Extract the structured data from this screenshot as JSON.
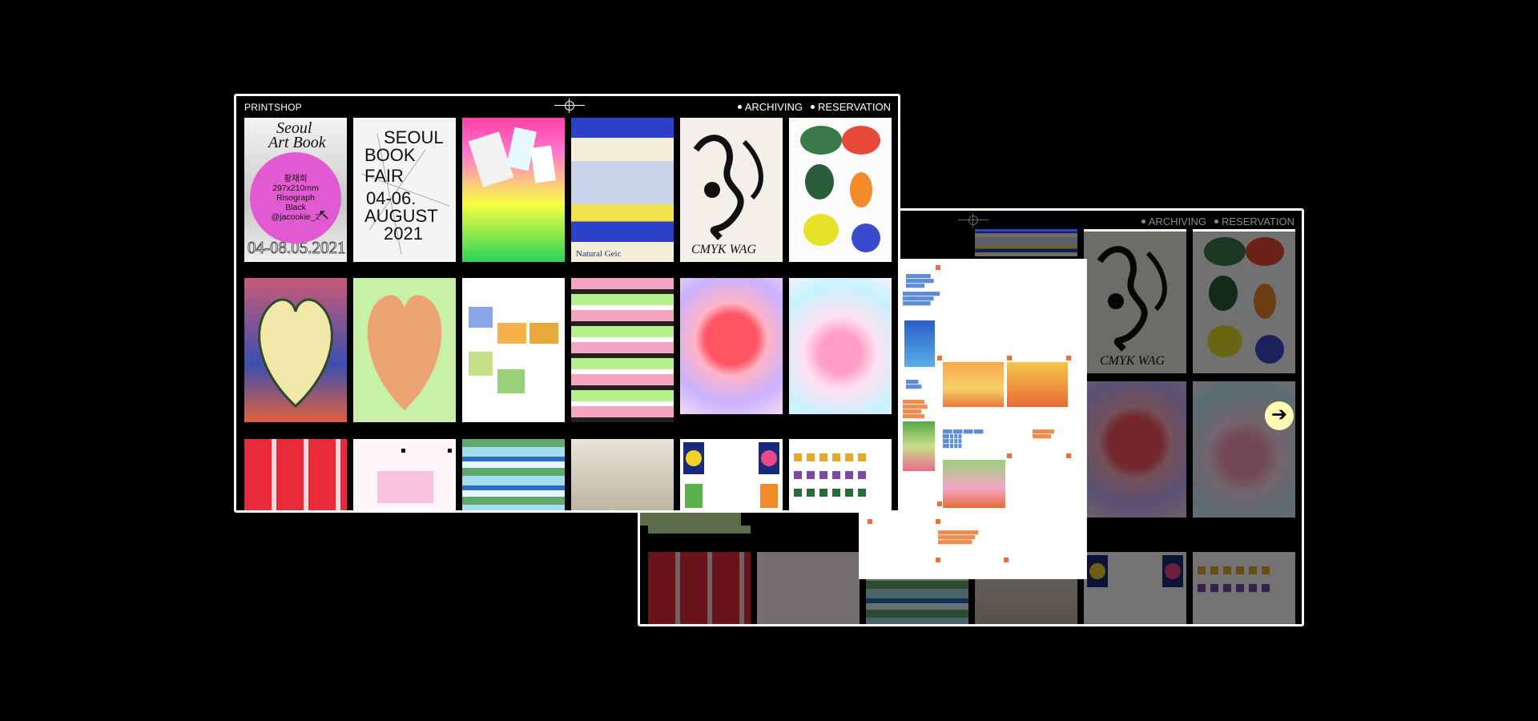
{
  "front_window": {
    "brand": "PRINTSHOP",
    "nav": [
      "ARCHIVING",
      "RESERVATION"
    ],
    "bubble": {
      "name": "황재희",
      "size": "297x210mm",
      "method": "Risograph",
      "color": "Black",
      "handle": "@jacookie_2"
    },
    "seoul_poster": {
      "line1": "Seoul",
      "line2": "Art Book",
      "dates": "04-08.05.2021"
    },
    "bookfair_poster": {
      "title1": "SEOUL",
      "title2": "BOOK FAIR",
      "dates": "04-06.",
      "month": "AUGUST",
      "year": "2021"
    },
    "natural_poster": {
      "label": "Natural Geic"
    },
    "cmyk_poster": {
      "label": "CMYK WAG"
    }
  },
  "back_window": {
    "nav": [
      "ARCHIVING",
      "RESERVATION"
    ],
    "cmyk_label": "CMYK WAG",
    "next_icon": "arrow-right-icon"
  }
}
